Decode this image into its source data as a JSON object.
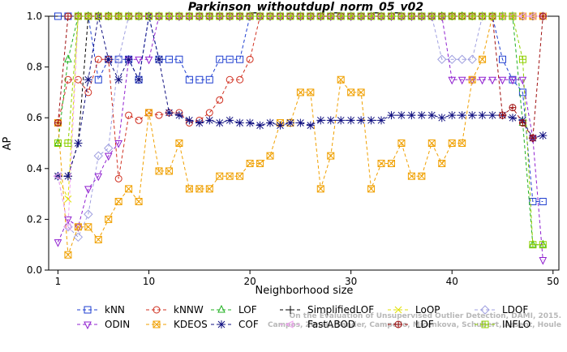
{
  "chart_data": {
    "type": "line",
    "title": "Parkinson_withoutdupl_norm_05_v02",
    "xlabel": "Neighborhood size",
    "ylabel": "AP",
    "xlim": [
      0,
      50
    ],
    "ylim": [
      0,
      1
    ],
    "xticks": [
      "10",
      "20",
      "30",
      "40",
      "50"
    ],
    "xtick_values": [
      1,
      10,
      20,
      30,
      40,
      50
    ],
    "xtick_labels": [
      "1",
      "10",
      "20",
      "30",
      "40",
      "50"
    ],
    "yticks": [
      0.0,
      0.2,
      0.4,
      0.6,
      0.8,
      1.0
    ],
    "ytick_labels": [
      "0.0",
      "0.2",
      "0.4",
      "0.6",
      "0.8",
      "1.0"
    ],
    "grid": false,
    "legend_position": "bottom",
    "watermark": [
      "Campos, Zimek, Sander, Campello, Micenkova, Schubert, Assent, Houle",
      "On the Evaluation of Unsupervised Outlier Detection, DAMI, 2015."
    ],
    "series": [
      {
        "name": "kNN",
        "color": "#1f3fd0",
        "marker": "square",
        "x": [
          1,
          2,
          3,
          4,
          5,
          6,
          7,
          8,
          9,
          10,
          11,
          12,
          13,
          14,
          15,
          16,
          17,
          18,
          19,
          20,
          21,
          22,
          23,
          24,
          25,
          26,
          27,
          28,
          29,
          30,
          31,
          32,
          33,
          34,
          35,
          36,
          37,
          38,
          39,
          40,
          41,
          42,
          43,
          44,
          45,
          46,
          47,
          48,
          49
        ],
        "values": [
          1,
          1,
          1,
          1,
          0.75,
          0.83,
          0.83,
          0.83,
          0.75,
          1,
          0.83,
          0.83,
          0.83,
          0.75,
          0.75,
          0.75,
          0.83,
          0.83,
          0.83,
          1,
          1,
          1,
          1,
          1,
          1,
          1,
          1,
          1,
          1,
          1,
          1,
          1,
          1,
          1,
          1,
          1,
          1,
          1,
          1,
          1,
          1,
          1,
          1,
          1,
          0.83,
          0.75,
          0.7,
          0.27,
          0.27
        ]
      },
      {
        "name": "kNNW",
        "color": "#d03020",
        "marker": "circle",
        "x": [
          1,
          2,
          3,
          4,
          5,
          6,
          7,
          8,
          9,
          10,
          11,
          12,
          13,
          14,
          15,
          16,
          17,
          18,
          19,
          20,
          21,
          22,
          23,
          24,
          25,
          26,
          27,
          28,
          29,
          30,
          31,
          32,
          33,
          34,
          35,
          36,
          37,
          38,
          39,
          40,
          41,
          42,
          43,
          44,
          45,
          46,
          47,
          48,
          49
        ],
        "values": [
          0.58,
          0.75,
          0.75,
          0.7,
          0.83,
          0.83,
          0.36,
          0.61,
          0.59,
          0.62,
          0.61,
          0.62,
          0.62,
          0.58,
          0.59,
          0.62,
          0.67,
          0.75,
          0.75,
          0.83,
          1,
          1,
          1,
          1,
          1,
          1,
          1,
          1,
          1,
          1,
          1,
          1,
          1,
          1,
          1,
          1,
          1,
          1,
          1,
          1,
          1,
          1,
          1,
          1,
          1,
          1,
          1,
          1,
          1
        ]
      },
      {
        "name": "LOF",
        "color": "#20b020",
        "marker": "triangle",
        "x": [
          1,
          2,
          3,
          4,
          5,
          6,
          7,
          8,
          9,
          10,
          11,
          12,
          13,
          14,
          15,
          16,
          17,
          18,
          19,
          20,
          21,
          22,
          23,
          24,
          25,
          26,
          27,
          28,
          29,
          30,
          31,
          32,
          33,
          34,
          35,
          36,
          37,
          38,
          39,
          40,
          41,
          42,
          43,
          44,
          45,
          46,
          47,
          48,
          49
        ],
        "values": [
          0.5,
          0.83,
          1,
          1,
          1,
          1,
          1,
          1,
          1,
          1,
          1,
          1,
          1,
          1,
          1,
          1,
          1,
          1,
          1,
          1,
          1,
          1,
          1,
          1,
          1,
          1,
          1,
          1,
          1,
          1,
          1,
          1,
          1,
          1,
          1,
          1,
          1,
          1,
          1,
          1,
          1,
          1,
          1,
          1,
          1,
          1,
          0.58,
          0.1,
          0.1
        ]
      },
      {
        "name": "SimplifiedLOF",
        "color": "#000000",
        "marker": "plus",
        "x": [
          1,
          2,
          3,
          4,
          5,
          6,
          7,
          8,
          9,
          10,
          11,
          12,
          13,
          14,
          15,
          16,
          17,
          18,
          19,
          20,
          21,
          22,
          23,
          24,
          25,
          26,
          27,
          28,
          29,
          30,
          31,
          32,
          33,
          34,
          35,
          36,
          37,
          38,
          39,
          40,
          41,
          42,
          43,
          44,
          45,
          46,
          47,
          48,
          49
        ],
        "values": [
          0.37,
          0.37,
          0.5,
          1,
          1,
          1,
          1,
          1,
          1,
          1,
          1,
          1,
          1,
          1,
          1,
          1,
          1,
          1,
          1,
          1,
          1,
          1,
          1,
          1,
          1,
          1,
          1,
          1,
          1,
          1,
          1,
          1,
          1,
          1,
          1,
          1,
          1,
          1,
          1,
          1,
          1,
          1,
          1,
          1,
          1,
          1,
          1,
          1,
          1
        ]
      },
      {
        "name": "LoOP",
        "color": "#e0e000",
        "marker": "x",
        "x": [
          1,
          2,
          3,
          4,
          5,
          6,
          7,
          8,
          9,
          10,
          11,
          12,
          13,
          14,
          15,
          16,
          17,
          18,
          19,
          20,
          21,
          22,
          23,
          24,
          25,
          26,
          27,
          28,
          29,
          30,
          31,
          32,
          33,
          34,
          35,
          36,
          37,
          38,
          39,
          40,
          41,
          42,
          43,
          44,
          45,
          46,
          47,
          48,
          49
        ],
        "values": [
          0.37,
          0.28,
          1,
          1,
          1,
          1,
          1,
          1,
          1,
          1,
          1,
          1,
          1,
          1,
          1,
          1,
          1,
          1,
          1,
          1,
          1,
          1,
          1,
          1,
          1,
          1,
          1,
          1,
          1,
          1,
          1,
          1,
          1,
          1,
          1,
          1,
          1,
          1,
          1,
          1,
          1,
          1,
          1,
          1,
          1,
          1,
          1,
          1,
          1
        ]
      },
      {
        "name": "LDOF",
        "color": "#a0a0e0",
        "marker": "diamond",
        "x": [
          1,
          2,
          3,
          4,
          5,
          6,
          7,
          8,
          9,
          10,
          11,
          12,
          13,
          14,
          15,
          16,
          17,
          18,
          19,
          20,
          21,
          22,
          23,
          24,
          25,
          26,
          27,
          28,
          29,
          30,
          31,
          32,
          33,
          34,
          35,
          36,
          37,
          38,
          39,
          40,
          41,
          42,
          43,
          44,
          45,
          46,
          47,
          48,
          49
        ],
        "values": [
          0.37,
          0.17,
          0.13,
          0.22,
          0.45,
          0.48,
          0.83,
          1,
          1,
          1,
          1,
          1,
          1,
          1,
          1,
          1,
          1,
          1,
          1,
          1,
          1,
          1,
          1,
          1,
          1,
          1,
          1,
          1,
          1,
          1,
          1,
          1,
          1,
          1,
          1,
          1,
          1,
          1,
          0.83,
          0.83,
          0.83,
          0.83,
          1,
          1,
          1,
          1,
          1,
          1,
          1
        ]
      },
      {
        "name": "ODIN",
        "color": "#9020d0",
        "marker": "triangle-down",
        "x": [
          1,
          2,
          3,
          4,
          5,
          6,
          7,
          8,
          9,
          10,
          11,
          12,
          13,
          14,
          15,
          16,
          17,
          18,
          19,
          20,
          21,
          22,
          23,
          24,
          25,
          26,
          27,
          28,
          29,
          30,
          31,
          32,
          33,
          34,
          35,
          36,
          37,
          38,
          39,
          40,
          41,
          42,
          43,
          44,
          45,
          46,
          47,
          48,
          49
        ],
        "values": [
          0.11,
          0.2,
          0.17,
          0.32,
          0.37,
          0.45,
          0.5,
          0.83,
          0.83,
          0.83,
          1,
          1,
          1,
          1,
          1,
          1,
          1,
          1,
          1,
          1,
          1,
          1,
          1,
          1,
          1,
          1,
          1,
          1,
          1,
          1,
          1,
          1,
          1,
          1,
          1,
          1,
          1,
          1,
          1,
          0.75,
          0.75,
          0.75,
          0.75,
          0.75,
          0.75,
          0.75,
          0.75,
          0.52,
          0.04
        ]
      },
      {
        "name": "KDEOS",
        "color": "#f0a000",
        "marker": "square-x",
        "x": [
          1,
          2,
          3,
          4,
          5,
          6,
          7,
          8,
          9,
          10,
          11,
          12,
          13,
          14,
          15,
          16,
          17,
          18,
          19,
          20,
          21,
          22,
          23,
          24,
          25,
          26,
          27,
          28,
          29,
          30,
          31,
          32,
          33,
          34,
          35,
          36,
          37,
          38,
          39,
          40,
          41,
          42,
          43,
          44,
          45,
          46,
          47,
          48,
          49
        ],
        "values": [
          0.58,
          0.06,
          0.17,
          0.17,
          0.12,
          0.2,
          0.27,
          0.32,
          0.27,
          0.62,
          0.39,
          0.39,
          0.5,
          0.32,
          0.32,
          0.32,
          0.37,
          0.37,
          0.37,
          0.42,
          0.42,
          0.45,
          0.58,
          0.58,
          0.7,
          0.7,
          0.32,
          0.45,
          0.75,
          0.7,
          0.7,
          0.32,
          0.42,
          0.42,
          0.5,
          0.37,
          0.37,
          0.5,
          0.42,
          0.5,
          0.5,
          0.75,
          0.83,
          1,
          1,
          1,
          1,
          1,
          1
        ]
      },
      {
        "name": "COF",
        "color": "#101080",
        "marker": "star",
        "x": [
          1,
          2,
          3,
          4,
          5,
          6,
          7,
          8,
          9,
          10,
          11,
          12,
          13,
          14,
          15,
          16,
          17,
          18,
          19,
          20,
          21,
          22,
          23,
          24,
          25,
          26,
          27,
          28,
          29,
          30,
          31,
          32,
          33,
          34,
          35,
          36,
          37,
          38,
          39,
          40,
          41,
          42,
          43,
          44,
          45,
          46,
          47,
          48,
          49
        ],
        "values": [
          0.37,
          0.37,
          0.5,
          0.75,
          1,
          0.83,
          0.75,
          0.83,
          0.75,
          1,
          0.83,
          0.62,
          0.61,
          0.59,
          0.58,
          0.59,
          0.58,
          0.59,
          0.58,
          0.58,
          0.57,
          0.58,
          0.57,
          0.58,
          0.58,
          0.57,
          0.59,
          0.59,
          0.59,
          0.59,
          0.59,
          0.59,
          0.59,
          0.61,
          0.61,
          0.61,
          0.61,
          0.61,
          0.6,
          0.61,
          0.61,
          0.61,
          0.61,
          0.61,
          0.61,
          0.6,
          0.59,
          0.52,
          0.53
        ]
      },
      {
        "name": "FastABOD",
        "color": "#f0a0f0",
        "marker": "triangle-left",
        "x": [
          1,
          2,
          3,
          4,
          5,
          6,
          7,
          8,
          9,
          10,
          11,
          12,
          13,
          14,
          15,
          16,
          17,
          18,
          19,
          20,
          21,
          22,
          23,
          24,
          25,
          26,
          27,
          28,
          29,
          30,
          31,
          32,
          33,
          34,
          35,
          36,
          37,
          38,
          39,
          40,
          41,
          42,
          43,
          44,
          45,
          46,
          47,
          48,
          49
        ],
        "values": [
          0.37,
          0.17,
          1,
          1,
          1,
          1,
          1,
          1,
          1,
          1,
          1,
          1,
          1,
          1,
          1,
          1,
          1,
          1,
          1,
          1,
          1,
          1,
          1,
          1,
          1,
          1,
          1,
          1,
          1,
          1,
          1,
          1,
          1,
          1,
          1,
          1,
          1,
          1,
          1,
          1,
          1,
          1,
          1,
          1,
          1,
          1,
          1,
          1,
          1
        ]
      },
      {
        "name": "LDF",
        "color": "#a01010",
        "marker": "circle-plus",
        "x": [
          1,
          2,
          3,
          4,
          5,
          6,
          7,
          8,
          9,
          10,
          11,
          12,
          13,
          14,
          15,
          16,
          17,
          18,
          19,
          20,
          21,
          22,
          23,
          24,
          25,
          26,
          27,
          28,
          29,
          30,
          31,
          32,
          33,
          34,
          35,
          36,
          37,
          38,
          39,
          40,
          41,
          42,
          43,
          44,
          45,
          46,
          47,
          48,
          49
        ],
        "values": [
          0.58,
          1,
          1,
          1,
          1,
          1,
          1,
          1,
          1,
          1,
          1,
          1,
          1,
          1,
          1,
          1,
          1,
          1,
          1,
          1,
          1,
          1,
          1,
          1,
          1,
          1,
          1,
          1,
          1,
          1,
          1,
          1,
          1,
          1,
          1,
          1,
          1,
          1,
          1,
          1,
          1,
          1,
          1,
          1,
          0.61,
          0.64,
          0.58,
          0.52,
          1
        ]
      },
      {
        "name": "INFLO",
        "color": "#90d000",
        "marker": "square-cross",
        "x": [
          1,
          2,
          3,
          4,
          5,
          6,
          7,
          8,
          9,
          10,
          11,
          12,
          13,
          14,
          15,
          16,
          17,
          18,
          19,
          20,
          21,
          22,
          23,
          24,
          25,
          26,
          27,
          28,
          29,
          30,
          31,
          32,
          33,
          34,
          35,
          36,
          37,
          38,
          39,
          40,
          41,
          42,
          43,
          44,
          45,
          46,
          47,
          48,
          49
        ],
        "values": [
          0.5,
          0.5,
          1,
          1,
          1,
          1,
          1,
          1,
          1,
          1,
          1,
          1,
          1,
          1,
          1,
          1,
          1,
          1,
          1,
          1,
          1,
          1,
          1,
          1,
          1,
          1,
          1,
          1,
          1,
          1,
          1,
          1,
          1,
          1,
          1,
          1,
          1,
          1,
          1,
          1,
          1,
          1,
          1,
          1,
          1,
          1,
          0.83,
          0.1,
          0.1
        ]
      }
    ]
  }
}
